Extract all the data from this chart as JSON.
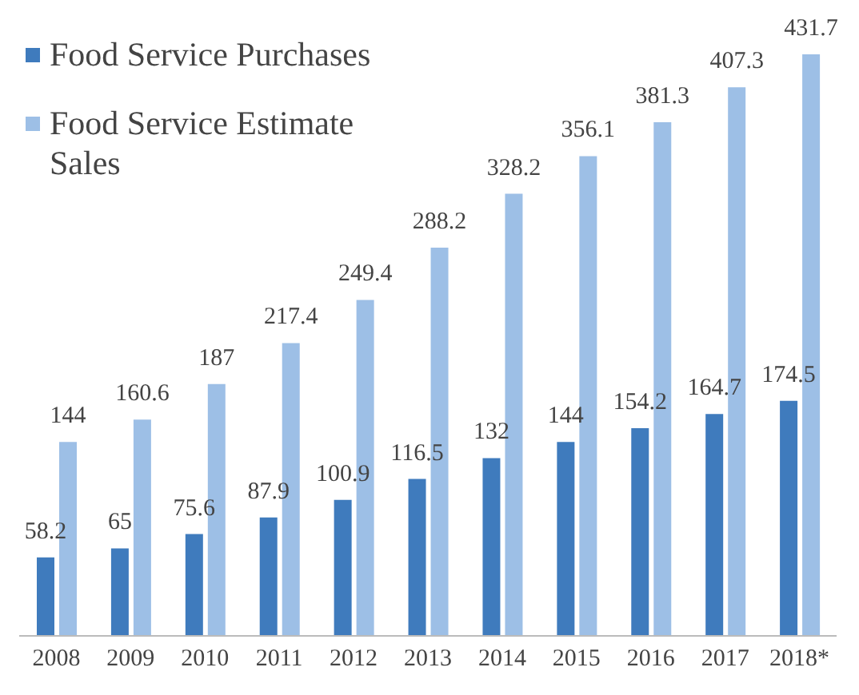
{
  "chart_data": {
    "type": "bar",
    "categories": [
      "2008",
      "2009",
      "2010",
      "2011",
      "2012",
      "2013",
      "2014",
      "2015",
      "2016",
      "2017",
      "2018*"
    ],
    "series": [
      {
        "name": "Food Service Purchases",
        "color": "#3f7bbd",
        "values": [
          58.2,
          65,
          75.6,
          87.9,
          100.9,
          116.5,
          132,
          144,
          154.2,
          164.7,
          174.5
        ]
      },
      {
        "name": "Food Service Estimate Sales",
        "color": "#9dbfe6",
        "values": [
          144,
          160.6,
          187,
          217.4,
          249.4,
          288.2,
          328.2,
          356.1,
          381.3,
          407.3,
          431.7
        ]
      }
    ],
    "data_labels": true,
    "legend": "top left",
    "tick_labels": "x",
    "grid": false
  }
}
